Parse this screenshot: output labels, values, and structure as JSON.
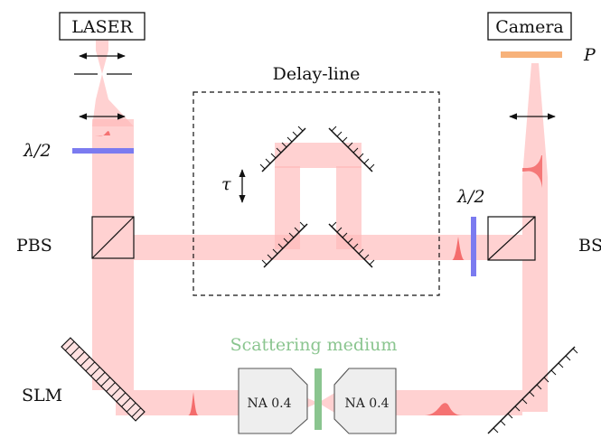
{
  "labels": {
    "laser": "LASER",
    "camera": "Camera",
    "polarizer": "P",
    "delay_line": "Delay-line",
    "tau": "τ",
    "half_wave_left": "λ/2",
    "half_wave_right": "λ/2",
    "pbs": "PBS",
    "bs": "BS",
    "scattering_medium": "Scattering medium",
    "slm": "SLM",
    "objective_left": "NA 0.4",
    "objective_right": "NA 0.4"
  },
  "colors": {
    "beam": "#ffb9b9",
    "pulse": "#f25a5a",
    "waveplate": "#7b7bf0",
    "polarizer": "#f7b27a",
    "scattering_medium": "#8ac58f",
    "objective_fill": "#eeeeee",
    "slm_fill": "#ffe0e0"
  }
}
